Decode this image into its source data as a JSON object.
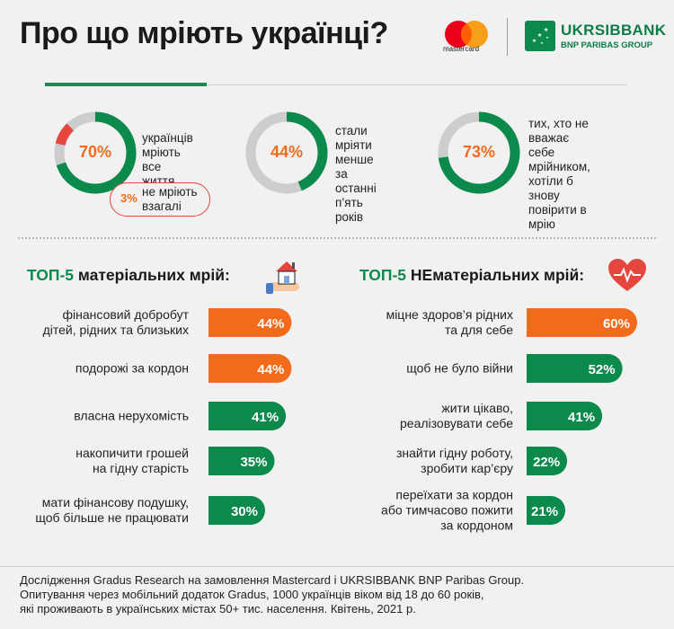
{
  "header": {
    "title": "Про що мріють українці?",
    "mastercard_word": "mastercard",
    "bank_name": "UKRSIBBANK",
    "bank_sub": "BNP PARIBAS GROUP"
  },
  "stats": [
    {
      "value": "70%",
      "fraction": 0.7,
      "line1": "українців",
      "line2": "мріють все",
      "line3": "життя",
      "line4": ""
    },
    {
      "value": "44%",
      "fraction": 0.44,
      "line1": "стали мріяти",
      "line2": "менше за",
      "line3": "останні",
      "line4": "п’ять років"
    },
    {
      "value": "73%",
      "fraction": 0.73,
      "line1": "тих, хто не",
      "line2": "вважає себе",
      "line3": "мрійником,",
      "line4": "хотіли б знову"
    }
  ],
  "stat3_line5": "повірити в мрію",
  "pill": {
    "value": "3%",
    "fraction": 0.03,
    "line1": "не мріють",
    "line2": "взагалі"
  },
  "colors": {
    "green": "#0b8a4c",
    "orange": "#f26b1d",
    "grey": "#cdcdcd",
    "red": "#e5473f"
  },
  "sections": {
    "material": {
      "prefix": "ТОП-5",
      "rest": "матеріальних мрій:",
      "icon": "house-in-hand-icon"
    },
    "nonmaterial": {
      "prefix": "ТОП-5",
      "rest": "НЕматеріальних мрій:",
      "icon": "heart-pulse-icon"
    }
  },
  "chart_data": [
    {
      "type": "bar",
      "title": "ТОП-5 матеріальних мрій:",
      "categories": [
        "фінансовий добробут дітей, рідних та близьких",
        "подорожі за кордон",
        "власна нерухомість",
        "накопичити грошей на гідну старість",
        "мати фінансову подушку, щоб більше не працювати"
      ],
      "category_lines": [
        [
          "фінансовий добробут",
          "дітей, рідних та близьких"
        ],
        [
          "подорожі за кордон"
        ],
        [
          "власна нерухомість"
        ],
        [
          "накопичити грошей",
          "на гідну старість"
        ],
        [
          "мати фінансову подушку,",
          "щоб більше не працювати"
        ]
      ],
      "values": [
        44,
        44,
        41,
        35,
        30
      ],
      "labels": [
        "44%",
        "44%",
        "41%",
        "35%",
        "30%"
      ],
      "bar_colors": [
        "#f26b1d",
        "#f26b1d",
        "#0b8a4c",
        "#0b8a4c",
        "#0b8a4c"
      ]
    },
    {
      "type": "bar",
      "title": "ТОП-5 НЕматеріальних мрій:",
      "categories": [
        "міцне здоров’я рідних та для себе",
        "щоб не було війни",
        "жити цікаво, реалізовувати себе",
        "знайти гідну роботу, зробити кар’єру",
        "переїхати за кордон або тимчасово пожити за кордоном"
      ],
      "category_lines": [
        [
          "міцне здоров’я рідних",
          "та для себе"
        ],
        [
          "щоб не було війни"
        ],
        [
          "жити цікаво,",
          "реалізовувати себе"
        ],
        [
          "знайти гідну роботу,",
          "зробити кар’єру"
        ],
        [
          "переїхати за кордон",
          "або тимчасово пожити",
          "за кордоном"
        ]
      ],
      "values": [
        60,
        52,
        41,
        22,
        21
      ],
      "labels": [
        "60%",
        "52%",
        "41%",
        "22%",
        "21%"
      ],
      "bar_colors": [
        "#f26b1d",
        "#0b8a4c",
        "#0b8a4c",
        "#0b8a4c",
        "#0b8a4c"
      ]
    }
  ],
  "footer": {
    "line1": "Дослідження Gradus Research на замовлення Mastercard і UKRSIBBANK BNP Paribas Group.",
    "line2": "Опитування через мобільний додаток Gradus, 1000 українців віком від 18 до 60 років,",
    "line3": "які проживають в українських містах 50+ тис. населення. Квітень, 2021 р."
  }
}
